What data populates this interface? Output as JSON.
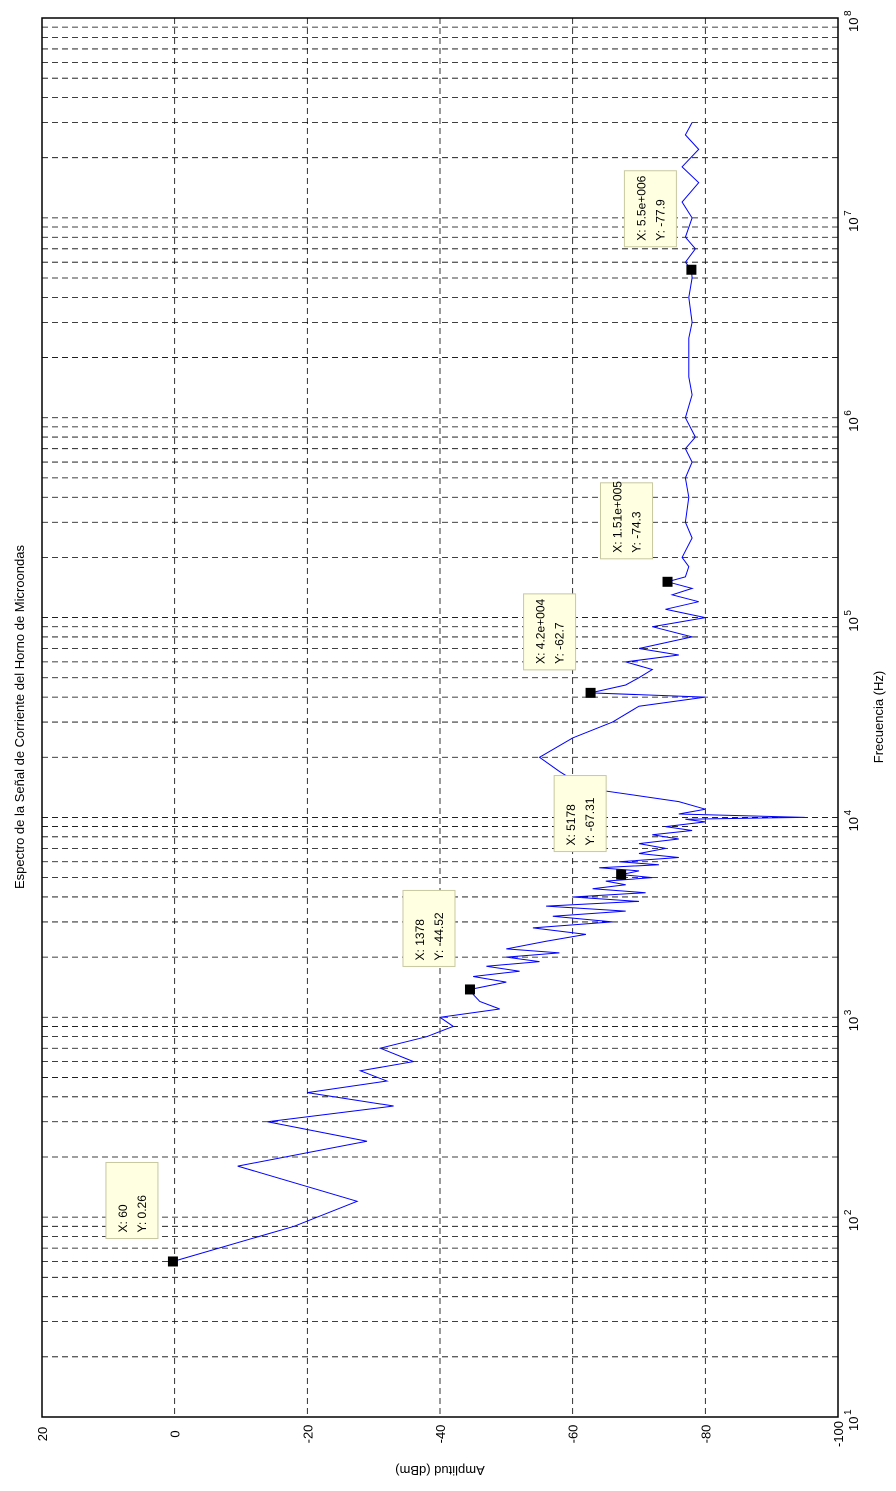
{
  "chart_data": {
    "type": "line",
    "title": "Espectro de la Señal de Corriente del Horno de Microondas",
    "xlabel": "Frecuencia (Hz)",
    "ylabel": "Amplitud (dBm)",
    "x_scale": "log",
    "xlim": [
      10,
      100000000
    ],
    "ylim": [
      -100,
      20
    ],
    "x_ticks": [
      {
        "base": "10",
        "exp": "1"
      },
      {
        "base": "10",
        "exp": "2"
      },
      {
        "base": "10",
        "exp": "3"
      },
      {
        "base": "10",
        "exp": "4"
      },
      {
        "base": "10",
        "exp": "5"
      },
      {
        "base": "10",
        "exp": "6"
      },
      {
        "base": "10",
        "exp": "7"
      },
      {
        "base": "10",
        "exp": "8"
      }
    ],
    "y_ticks": [
      "20",
      "0",
      "-20",
      "-40",
      "-60",
      "-80",
      "-100"
    ],
    "y_tick_values": [
      20,
      0,
      -20,
      -40,
      -60,
      -80,
      -100
    ],
    "grid": true,
    "grid_style": "dashed",
    "line_color": "#0000ff",
    "series": [
      {
        "x": [
          60,
          90,
          120,
          180,
          240,
          300,
          360,
          420,
          480,
          540,
          600,
          700,
          800,
          900,
          1000,
          1100,
          1200,
          1300,
          1378,
          1500,
          1600,
          1700,
          1800,
          1900,
          2000,
          2100,
          2200,
          2400,
          2600,
          2800,
          3000,
          3200,
          3400,
          3600,
          3800,
          4000,
          4200,
          4400,
          4600,
          4800,
          5000,
          5178,
          5400,
          5600,
          5800,
          6000,
          6300,
          6600,
          7000,
          7400,
          7800,
          8200,
          8600,
          9000,
          9500,
          9800,
          10000,
          10400,
          11000,
          12000,
          14000,
          17000,
          20000,
          25000,
          30000,
          36000,
          40000,
          42000,
          46000,
          50000,
          55000,
          60000,
          65000,
          70000,
          80000,
          90000,
          100000,
          110000,
          120000,
          130000,
          140000,
          151000,
          160000,
          180000,
          200000,
          250000,
          300000,
          400000,
          500000,
          600000,
          700000,
          800000,
          1000000,
          1300000,
          1600000,
          2000000,
          2500000,
          3000000,
          4000000,
          5000000,
          5500000,
          6000000,
          7000000,
          8000000,
          10000000,
          12000000,
          15000000,
          18000000,
          22000000,
          26000000,
          30000000
        ],
        "y": [
          0.26,
          -18,
          -27.5,
          -9.5,
          -29,
          -14,
          -33,
          -20,
          -32,
          -28,
          -36,
          -31,
          -38,
          -42,
          -40,
          -49,
          -46,
          -45,
          -44.52,
          -50,
          -45,
          -52,
          -47,
          -55,
          -50,
          -58,
          -50,
          -56,
          -62,
          -54,
          -66,
          -57,
          -68,
          -56,
          -70,
          -60,
          -71,
          -63,
          -68,
          -65,
          -72,
          -67.31,
          -70,
          -64,
          -73,
          -67,
          -76,
          -70,
          -74,
          -70,
          -76,
          -72,
          -78,
          -74,
          -80,
          -77,
          -95,
          -76,
          -80,
          -76,
          -62,
          -58,
          -55,
          -60,
          -66,
          -70,
          -80,
          -62.7,
          -68,
          -70,
          -72,
          -68,
          -76,
          -70,
          -78,
          -72,
          -80,
          -74,
          -79,
          -75,
          -78,
          -74.3,
          -77,
          -77.5,
          -76.5,
          -78,
          -77,
          -77.5,
          -77,
          -78,
          -77,
          -78.5,
          -77,
          -78,
          -77.5,
          -77.5,
          -77.5,
          -78,
          -77.5,
          -78,
          -77.9,
          -77,
          -78.5,
          -77,
          -78,
          -76.5,
          -79,
          -76.5,
          -79,
          -77,
          -78
        ]
      }
    ],
    "annotations": [
      {
        "x": 60,
        "y": 0.26,
        "line1": "X: 60",
        "line2": "Y: 0.26"
      },
      {
        "x": 1378,
        "y": -44.52,
        "line1": "X: 1378",
        "line2": "Y: -44.52"
      },
      {
        "x": 5178,
        "y": -67.31,
        "line1": "X: 5178",
        "line2": "Y: -67.31"
      },
      {
        "x": 42000,
        "y": -62.7,
        "line1": "X: 4.2e+004",
        "line2": "Y: -62.7"
      },
      {
        "x": 151000,
        "y": -74.3,
        "line1": "X: 1.51e+005",
        "line2": "Y: -74.3"
      },
      {
        "x": 5500000,
        "y": -77.9,
        "line1": "X: 5.5e+006",
        "line2": "Y: -77.9"
      }
    ]
  }
}
